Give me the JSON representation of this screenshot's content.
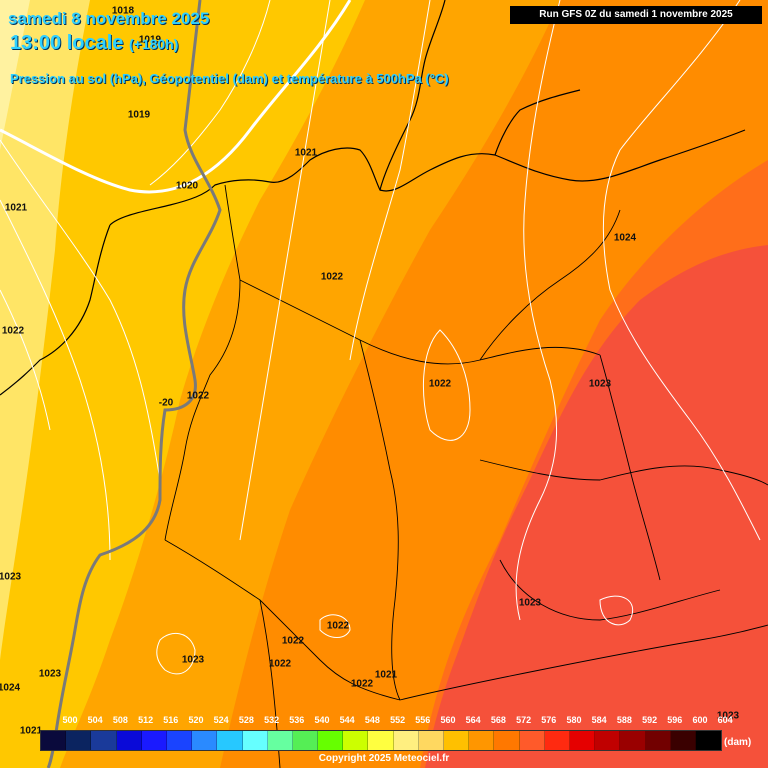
{
  "header": {
    "date": "samedi 8 novembre 2025",
    "time": "13:00 locale",
    "lead": "(+180h)",
    "description": "Pression au sol (hPa), Géopotentiel (dam) et température à 500hPa (°C)",
    "run": "Run GFS 0Z du samedi 1 novembre 2025"
  },
  "isobar_labels": [
    "1018",
    "1019",
    "1019",
    "1020",
    "1020",
    "1021",
    "1021",
    "1022",
    "1022",
    "1022",
    "1022",
    "1023",
    "1024",
    "1023",
    "1023",
    "1023",
    "1022",
    "1022",
    "1022",
    "1021",
    "1022",
    "1023",
    "1024",
    "1021",
    "1023",
    "1023"
  ],
  "contour_label": "-20",
  "legend": {
    "values": [
      "500",
      "504",
      "508",
      "512",
      "516",
      "520",
      "524",
      "528",
      "532",
      "536",
      "540",
      "544",
      "548",
      "552",
      "556",
      "560",
      "564",
      "568",
      "572",
      "576",
      "580",
      "584",
      "588",
      "592",
      "596",
      "600",
      "604"
    ],
    "colors": [
      "#0a0a3c",
      "#0b2460",
      "#1a3a9a",
      "#0a0ad8",
      "#1a1aff",
      "#1a44ff",
      "#2a8aff",
      "#27c8ff",
      "#66ffff",
      "#66ffa0",
      "#55ee55",
      "#66ff00",
      "#ccff00",
      "#ffff40",
      "#ffef80",
      "#ffd860",
      "#ffc000",
      "#ff9600",
      "#ff7800",
      "#ff5a2a",
      "#ff2a10",
      "#e50000",
      "#c00000",
      "#9a0000",
      "#720000",
      "#3a0000",
      "#000000"
    ],
    "unit": "(dam)"
  },
  "copyright": "Copyright 2025 Meteociel.fr",
  "fill_colors": [
    "#fff2a0",
    "#ffe566",
    "#ffc800",
    "#ffa500",
    "#ff8c00",
    "#ff6e1a",
    "#f5513a"
  ]
}
